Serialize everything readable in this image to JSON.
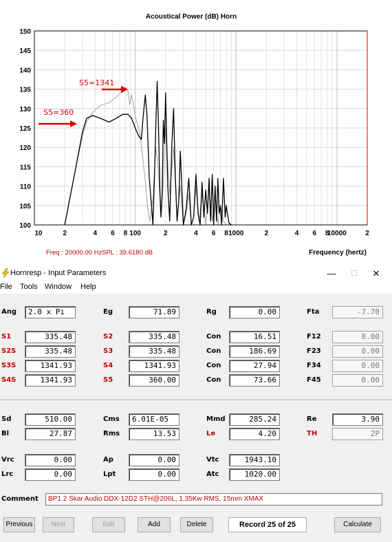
{
  "chart": {
    "title": "Acoustical Power (dB)   Horn",
    "freq_readout": "Freq : 20000.00 Hz",
    "spl_readout": "SPL : 39.6180 dB",
    "xlabel": "Frequency (hertz)",
    "annot_1341": "S5=1341",
    "annot_360": "S5=360"
  },
  "chart_data": {
    "type": "line",
    "title": "Acoustical Power (dB)   Horn",
    "xlabel": "Frequency (hertz)",
    "ylabel": "",
    "x_scale": "log",
    "xlim": [
      10,
      20000
    ],
    "ylim": [
      100,
      150
    ],
    "y_ticks": [
      100,
      105,
      110,
      115,
      120,
      125,
      130,
      135,
      140,
      145,
      150
    ],
    "x_tick_labels": [
      "10",
      "2",
      "4",
      "6",
      "8",
      "100",
      "2",
      "4",
      "6",
      "8",
      "1000",
      "2",
      "4",
      "6",
      "8",
      "10000",
      "2"
    ],
    "x_tick_values": [
      10,
      20,
      40,
      60,
      80,
      100,
      200,
      400,
      600,
      800,
      1000,
      2000,
      4000,
      6000,
      8000,
      10000,
      20000
    ],
    "grid": true,
    "series": [
      {
        "name": "S5=360",
        "color": "#000000",
        "x": [
          20,
          25,
          30,
          33,
          38,
          45,
          55,
          65,
          75,
          85,
          92,
          100,
          108,
          115,
          120,
          126,
          131,
          138,
          145,
          150,
          155,
          160,
          165,
          170,
          175,
          180,
          185,
          190,
          195,
          200,
          210,
          220,
          230,
          240,
          250,
          260,
          270,
          280,
          300,
          320,
          340,
          360,
          380,
          400,
          420,
          440,
          460,
          480,
          500,
          520,
          540,
          560,
          580,
          600,
          620,
          640,
          660,
          680,
          700,
          720,
          750,
          780,
          800,
          850,
          900
        ],
        "y": [
          100,
          113,
          124,
          127.5,
          128.2,
          127.5,
          126.5,
          127.5,
          128.5,
          128.5,
          127.5,
          125,
          123,
          122,
          128,
          133.5,
          128,
          112,
          105,
          100,
          112,
          125,
          137,
          126,
          110,
          102,
          108,
          127,
          121,
          134,
          110,
          101,
          120,
          130,
          112,
          101,
          106,
          119,
          100,
          104,
          112,
          100,
          102,
          113,
          103,
          100,
          111,
          102,
          109,
          103,
          112,
          101,
          113,
          100,
          110,
          101,
          112,
          103,
          105,
          100,
          112,
          102,
          105,
          100.5,
          100
        ]
      },
      {
        "name": "S5=1341",
        "color": "#a0a0a0",
        "x": [
          20,
          25,
          30,
          33,
          38,
          45,
          55,
          65,
          75,
          80,
          85,
          88,
          92,
          96,
          100,
          106,
          112,
          118,
          125,
          132,
          140,
          150,
          160,
          170,
          180,
          190,
          200,
          220,
          240,
          260,
          280,
          300,
          320,
          340,
          360,
          380,
          400,
          430,
          460,
          500,
          540,
          580,
          620,
          660,
          700,
          750,
          800
        ],
        "y": [
          100,
          113,
          123,
          126.5,
          129,
          130.8,
          131.5,
          133,
          134.5,
          135.5,
          134.5,
          131,
          133.5,
          131,
          128,
          126,
          123,
          118,
          112,
          105,
          101,
          107,
          120,
          114,
          102,
          111,
          125,
          108,
          120,
          102,
          110,
          100,
          103,
          108,
          100,
          102,
          110,
          101,
          108,
          100,
          109,
          101,
          107,
          100,
          105,
          101,
          100
        ]
      }
    ]
  },
  "window": {
    "title": "Hornresp - Input Parameters",
    "min": "—",
    "max": "☐",
    "close": "✕"
  },
  "menu": [
    "File",
    "Tools",
    "Window",
    "Help"
  ],
  "params": {
    "ang_l": "Ang",
    "ang_v": "2.0 x Pi",
    "eg_l": "Eg",
    "eg_v": "71.89",
    "rg_l": "Rg",
    "rg_v": "0.00",
    "fta_l": "Fta",
    "fta_v": "-7.70",
    "s1_l": "S1",
    "s1_v": "335.48",
    "s2_l": "S2",
    "s2_v": "335.48",
    "con1_l": "Con",
    "con1_v": "16.51",
    "f12_l": "F12",
    "f12_v": "0.00",
    "s2s_l": "S2S",
    "s2s_v": "335.48",
    "s3_l": "S3",
    "s3_v": "335.48",
    "con2_l": "Con",
    "con2_v": "186.69",
    "f23_l": "F23",
    "f23_v": "0.00",
    "s3s_l": "S3S",
    "s3s_v": "1341.93",
    "s4_l": "S4",
    "s4_v": "1341.93",
    "con3_l": "Con",
    "con3_v": "27.94",
    "f34_l": "F34",
    "f34_v": "0.00",
    "s4s_l": "S4S",
    "s4s_v": "1341.93",
    "s5_l": "S5",
    "s5_v": "360.00",
    "con4_l": "Con",
    "con4_v": "73.66",
    "f45_l": "F45",
    "f45_v": "0.00",
    "sd_l": "Sd",
    "sd_v": "510.00",
    "cms_l": "Cms",
    "cms_v": "6.01E-05",
    "mmd_l": "Mmd",
    "mmd_v": "285.24",
    "re_l": "Re",
    "re_v": "3.90",
    "bl_l": "Bl",
    "bl_v": "27.87",
    "rms_l": "Rms",
    "rms_v": "13.53",
    "le_l": "Le",
    "le_v": "4.20",
    "th_l": "TH",
    "th_v": "2P",
    "vrc_l": "Vrc",
    "vrc_v": "0.00",
    "ap_l": "Ap",
    "ap_v": "0.00",
    "vtc_l": "Vtc",
    "vtc_v": "1943.10",
    "lrc_l": "Lrc",
    "lrc_v": "0.00",
    "lpt_l": "Lpt",
    "lpt_v": "0.00",
    "atc_l": "Atc",
    "atc_v": "1020.00"
  },
  "comment": {
    "label": "Comment",
    "value": "BP1 2 Skar Audio DDX-12D2 STH@206L, 1.35Kw RMS, 15mm XMAX"
  },
  "buttons": {
    "previous": "Previous",
    "next": "Next",
    "edit": "Edit",
    "add": "Add",
    "delete": "Delete",
    "record": "Record 25 of 25",
    "calculate": "Calculate"
  }
}
